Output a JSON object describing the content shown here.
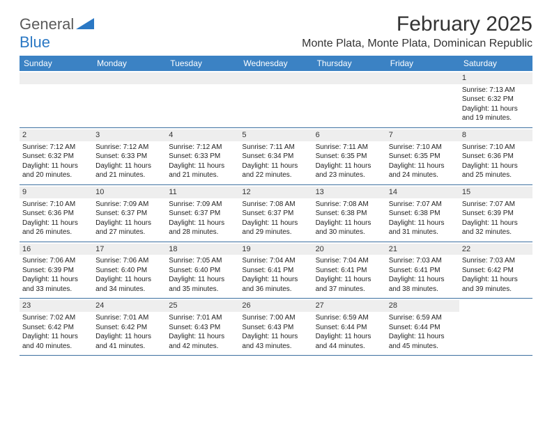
{
  "brand": {
    "part1": "General",
    "part2": "Blue"
  },
  "title": "February 2025",
  "location": "Monte Plata, Monte Plata, Dominican Republic",
  "colors": {
    "header_bg": "#3b82c4",
    "header_text": "#ffffff",
    "band_bg": "#eeeeee",
    "row_border": "#3b6fa0",
    "brand_gray": "#5a5a5a",
    "brand_blue": "#2b78c4",
    "text": "#222222"
  },
  "day_names": [
    "Sunday",
    "Monday",
    "Tuesday",
    "Wednesday",
    "Thursday",
    "Friday",
    "Saturday"
  ],
  "weeks": [
    [
      {
        "empty": true
      },
      {
        "empty": true
      },
      {
        "empty": true
      },
      {
        "empty": true
      },
      {
        "empty": true
      },
      {
        "empty": true
      },
      {
        "num": "1",
        "sunrise": "Sunrise: 7:13 AM",
        "sunset": "Sunset: 6:32 PM",
        "day1": "Daylight: 11 hours",
        "day2": "and 19 minutes."
      }
    ],
    [
      {
        "num": "2",
        "sunrise": "Sunrise: 7:12 AM",
        "sunset": "Sunset: 6:32 PM",
        "day1": "Daylight: 11 hours",
        "day2": "and 20 minutes."
      },
      {
        "num": "3",
        "sunrise": "Sunrise: 7:12 AM",
        "sunset": "Sunset: 6:33 PM",
        "day1": "Daylight: 11 hours",
        "day2": "and 21 minutes."
      },
      {
        "num": "4",
        "sunrise": "Sunrise: 7:12 AM",
        "sunset": "Sunset: 6:33 PM",
        "day1": "Daylight: 11 hours",
        "day2": "and 21 minutes."
      },
      {
        "num": "5",
        "sunrise": "Sunrise: 7:11 AM",
        "sunset": "Sunset: 6:34 PM",
        "day1": "Daylight: 11 hours",
        "day2": "and 22 minutes."
      },
      {
        "num": "6",
        "sunrise": "Sunrise: 7:11 AM",
        "sunset": "Sunset: 6:35 PM",
        "day1": "Daylight: 11 hours",
        "day2": "and 23 minutes."
      },
      {
        "num": "7",
        "sunrise": "Sunrise: 7:10 AM",
        "sunset": "Sunset: 6:35 PM",
        "day1": "Daylight: 11 hours",
        "day2": "and 24 minutes."
      },
      {
        "num": "8",
        "sunrise": "Sunrise: 7:10 AM",
        "sunset": "Sunset: 6:36 PM",
        "day1": "Daylight: 11 hours",
        "day2": "and 25 minutes."
      }
    ],
    [
      {
        "num": "9",
        "sunrise": "Sunrise: 7:10 AM",
        "sunset": "Sunset: 6:36 PM",
        "day1": "Daylight: 11 hours",
        "day2": "and 26 minutes."
      },
      {
        "num": "10",
        "sunrise": "Sunrise: 7:09 AM",
        "sunset": "Sunset: 6:37 PM",
        "day1": "Daylight: 11 hours",
        "day2": "and 27 minutes."
      },
      {
        "num": "11",
        "sunrise": "Sunrise: 7:09 AM",
        "sunset": "Sunset: 6:37 PM",
        "day1": "Daylight: 11 hours",
        "day2": "and 28 minutes."
      },
      {
        "num": "12",
        "sunrise": "Sunrise: 7:08 AM",
        "sunset": "Sunset: 6:37 PM",
        "day1": "Daylight: 11 hours",
        "day2": "and 29 minutes."
      },
      {
        "num": "13",
        "sunrise": "Sunrise: 7:08 AM",
        "sunset": "Sunset: 6:38 PM",
        "day1": "Daylight: 11 hours",
        "day2": "and 30 minutes."
      },
      {
        "num": "14",
        "sunrise": "Sunrise: 7:07 AM",
        "sunset": "Sunset: 6:38 PM",
        "day1": "Daylight: 11 hours",
        "day2": "and 31 minutes."
      },
      {
        "num": "15",
        "sunrise": "Sunrise: 7:07 AM",
        "sunset": "Sunset: 6:39 PM",
        "day1": "Daylight: 11 hours",
        "day2": "and 32 minutes."
      }
    ],
    [
      {
        "num": "16",
        "sunrise": "Sunrise: 7:06 AM",
        "sunset": "Sunset: 6:39 PM",
        "day1": "Daylight: 11 hours",
        "day2": "and 33 minutes."
      },
      {
        "num": "17",
        "sunrise": "Sunrise: 7:06 AM",
        "sunset": "Sunset: 6:40 PM",
        "day1": "Daylight: 11 hours",
        "day2": "and 34 minutes."
      },
      {
        "num": "18",
        "sunrise": "Sunrise: 7:05 AM",
        "sunset": "Sunset: 6:40 PM",
        "day1": "Daylight: 11 hours",
        "day2": "and 35 minutes."
      },
      {
        "num": "19",
        "sunrise": "Sunrise: 7:04 AM",
        "sunset": "Sunset: 6:41 PM",
        "day1": "Daylight: 11 hours",
        "day2": "and 36 minutes."
      },
      {
        "num": "20",
        "sunrise": "Sunrise: 7:04 AM",
        "sunset": "Sunset: 6:41 PM",
        "day1": "Daylight: 11 hours",
        "day2": "and 37 minutes."
      },
      {
        "num": "21",
        "sunrise": "Sunrise: 7:03 AM",
        "sunset": "Sunset: 6:41 PM",
        "day1": "Daylight: 11 hours",
        "day2": "and 38 minutes."
      },
      {
        "num": "22",
        "sunrise": "Sunrise: 7:03 AM",
        "sunset": "Sunset: 6:42 PM",
        "day1": "Daylight: 11 hours",
        "day2": "and 39 minutes."
      }
    ],
    [
      {
        "num": "23",
        "sunrise": "Sunrise: 7:02 AM",
        "sunset": "Sunset: 6:42 PM",
        "day1": "Daylight: 11 hours",
        "day2": "and 40 minutes."
      },
      {
        "num": "24",
        "sunrise": "Sunrise: 7:01 AM",
        "sunset": "Sunset: 6:42 PM",
        "day1": "Daylight: 11 hours",
        "day2": "and 41 minutes."
      },
      {
        "num": "25",
        "sunrise": "Sunrise: 7:01 AM",
        "sunset": "Sunset: 6:43 PM",
        "day1": "Daylight: 11 hours",
        "day2": "and 42 minutes."
      },
      {
        "num": "26",
        "sunrise": "Sunrise: 7:00 AM",
        "sunset": "Sunset: 6:43 PM",
        "day1": "Daylight: 11 hours",
        "day2": "and 43 minutes."
      },
      {
        "num": "27",
        "sunrise": "Sunrise: 6:59 AM",
        "sunset": "Sunset: 6:44 PM",
        "day1": "Daylight: 11 hours",
        "day2": "and 44 minutes."
      },
      {
        "num": "28",
        "sunrise": "Sunrise: 6:59 AM",
        "sunset": "Sunset: 6:44 PM",
        "day1": "Daylight: 11 hours",
        "day2": "and 45 minutes."
      },
      {
        "empty": true,
        "noband": true
      }
    ]
  ]
}
